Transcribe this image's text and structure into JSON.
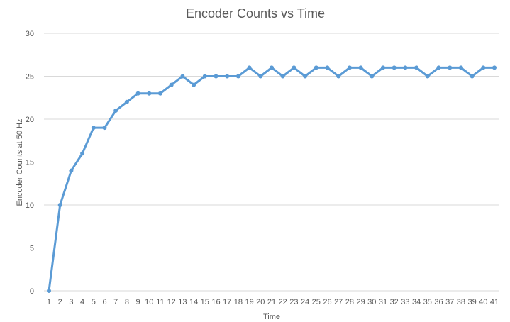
{
  "chart_data": {
    "type": "line",
    "title": "Encoder Counts  vs Time",
    "xlabel": "Time",
    "ylabel": "Encoder Counts at 50 Hz",
    "ylim": [
      0,
      30
    ],
    "y_ticks": [
      0,
      5,
      10,
      15,
      20,
      25,
      30
    ],
    "grid": true,
    "legend": "none",
    "categories": [
      "1",
      "2",
      "3",
      "4",
      "5",
      "6",
      "7",
      "8",
      "9",
      "10",
      "11",
      "12",
      "13",
      "14",
      "15",
      "16",
      "17",
      "18",
      "19",
      "20",
      "21",
      "22",
      "23",
      "24",
      "25",
      "26",
      "27",
      "28",
      "29",
      "30",
      "31",
      "32",
      "33",
      "34",
      "35",
      "36",
      "37",
      "38",
      "39",
      "40",
      "41"
    ],
    "series": [
      {
        "color": "#5b9bd5",
        "values": [
          0,
          10,
          14,
          16,
          19,
          19,
          21,
          22,
          23,
          23,
          23,
          24,
          25,
          24,
          25,
          25,
          25,
          25,
          26,
          25,
          26,
          25,
          26,
          25,
          26,
          26,
          25,
          26,
          26,
          25,
          26,
          26,
          26,
          26,
          25,
          26,
          26,
          26,
          25,
          26,
          26
        ]
      }
    ]
  }
}
